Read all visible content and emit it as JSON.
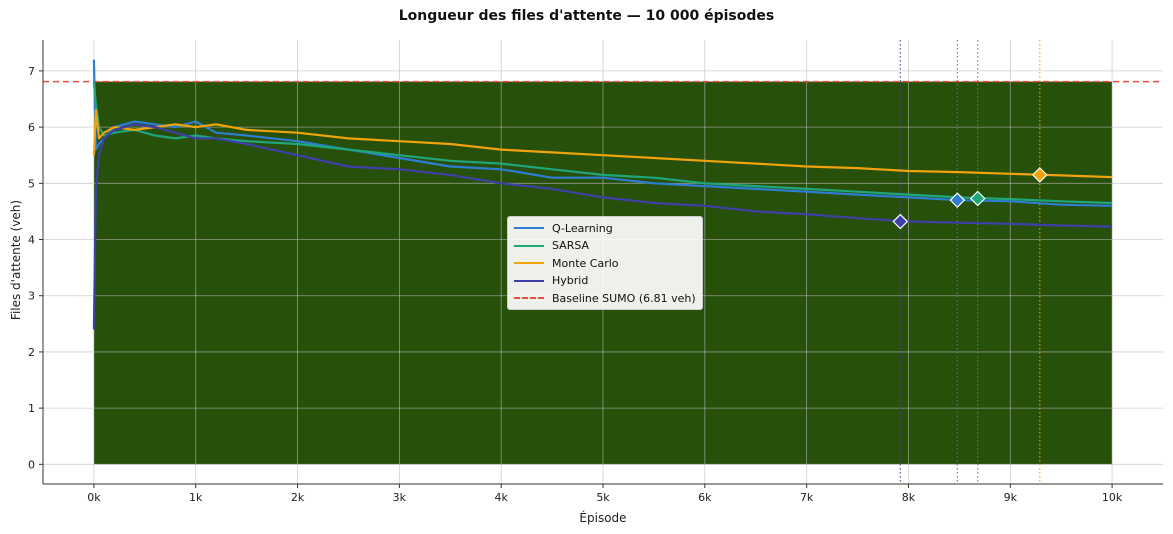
{
  "chart_data": {
    "type": "line",
    "title": "Longueur des files d'attente — 10 000 épisodes",
    "xlabel": "Épisode",
    "ylabel": "Files d'attente (veh)",
    "xlim": [
      -500,
      10500
    ],
    "ylim": [
      -0.35,
      7.55
    ],
    "x_ticks": [
      0,
      1000,
      2000,
      3000,
      4000,
      5000,
      6000,
      7000,
      8000,
      9000,
      10000
    ],
    "x_tick_labels": [
      "0k",
      "1k",
      "2k",
      "3k",
      "4k",
      "5k",
      "6k",
      "7k",
      "8k",
      "9k",
      "10k"
    ],
    "y_ticks": [
      0,
      1,
      2,
      3,
      4,
      5,
      6,
      7
    ],
    "y_tick_labels": [
      "0",
      "1",
      "2",
      "3",
      "4",
      "5",
      "6",
      "7"
    ],
    "grid": true,
    "legend_position": "center",
    "baseline": {
      "name": "Baseline SUMO (6.81 veh)",
      "value": 6.81,
      "color": "#e74c3c",
      "fill_color": "#27500a"
    },
    "series": [
      {
        "name": "Q-Learning",
        "color": "#2d7dd2",
        "x": [
          0,
          20,
          50,
          100,
          200,
          400,
          600,
          800,
          1000,
          1200,
          1500,
          2000,
          2500,
          3000,
          3500,
          4000,
          4500,
          5000,
          5500,
          6000,
          6500,
          7000,
          7500,
          8000,
          8500,
          9000,
          9500,
          10000
        ],
        "y": [
          7.2,
          5.6,
          5.7,
          5.8,
          6.0,
          6.1,
          6.05,
          6.0,
          6.1,
          5.9,
          5.85,
          5.75,
          5.6,
          5.45,
          5.3,
          5.25,
          5.1,
          5.1,
          5.0,
          4.95,
          4.9,
          4.85,
          4.8,
          4.75,
          4.7,
          4.68,
          4.62,
          4.6
        ]
      },
      {
        "name": "SARSA",
        "color": "#1fa67a",
        "x": [
          0,
          20,
          50,
          100,
          200,
          400,
          600,
          800,
          1000,
          1200,
          1500,
          2000,
          2500,
          3000,
          3500,
          4000,
          4500,
          5000,
          5500,
          6000,
          6500,
          7000,
          7500,
          8000,
          8500,
          9000,
          9500,
          10000
        ],
        "y": [
          6.8,
          6.4,
          6.0,
          5.85,
          5.9,
          5.95,
          5.85,
          5.8,
          5.85,
          5.8,
          5.75,
          5.7,
          5.6,
          5.5,
          5.4,
          5.35,
          5.25,
          5.15,
          5.1,
          5.0,
          4.95,
          4.9,
          4.85,
          4.8,
          4.75,
          4.72,
          4.68,
          4.65
        ]
      },
      {
        "name": "Monte Carlo",
        "color": "#f0a30a",
        "x": [
          0,
          20,
          50,
          100,
          200,
          400,
          600,
          800,
          1000,
          1200,
          1500,
          2000,
          2500,
          3000,
          3500,
          4000,
          4500,
          5000,
          5500,
          6000,
          6500,
          7000,
          7500,
          8000,
          8500,
          9000,
          9500,
          10000
        ],
        "y": [
          5.5,
          6.3,
          5.8,
          5.9,
          6.0,
          5.95,
          6.0,
          6.05,
          6.0,
          6.05,
          5.95,
          5.9,
          5.8,
          5.75,
          5.7,
          5.6,
          5.55,
          5.5,
          5.45,
          5.4,
          5.35,
          5.3,
          5.27,
          5.22,
          5.2,
          5.17,
          5.14,
          5.11
        ]
      },
      {
        "name": "Hybrid",
        "color": "#3f3fa8",
        "x": [
          0,
          20,
          50,
          100,
          200,
          400,
          600,
          800,
          1000,
          1200,
          1500,
          2000,
          2500,
          3000,
          3500,
          4000,
          4500,
          5000,
          5500,
          6000,
          6500,
          7000,
          7500,
          8000,
          8500,
          9000,
          9500,
          10000
        ],
        "y": [
          2.4,
          4.9,
          5.5,
          5.8,
          5.95,
          6.05,
          6.0,
          5.9,
          5.8,
          5.8,
          5.7,
          5.5,
          5.3,
          5.25,
          5.15,
          5.0,
          4.9,
          4.75,
          4.65,
          4.6,
          4.5,
          4.45,
          4.38,
          4.32,
          4.3,
          4.28,
          4.25,
          4.23
        ]
      }
    ],
    "markers": [
      {
        "series": "Hybrid",
        "x": 7920,
        "y": 4.32,
        "color": "#3f3fa8"
      },
      {
        "series": "Q-Learning",
        "x": 8480,
        "y": 4.7,
        "color": "#2d7dd2"
      },
      {
        "series": "SARSA",
        "x": 8680,
        "y": 4.73,
        "color": "#1fa67a"
      },
      {
        "series": "Monte Carlo",
        "x": 9290,
        "y": 5.15,
        "color": "#f0a30a"
      }
    ]
  }
}
